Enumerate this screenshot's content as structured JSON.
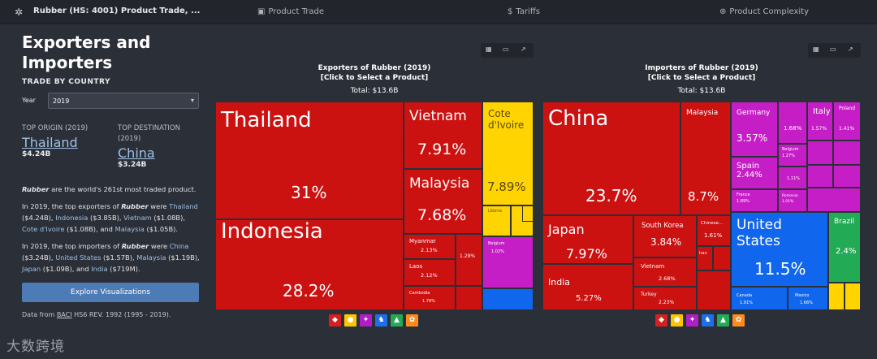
{
  "topbar": {
    "title": "Rubber (HS: 4001) Product Trade, ...",
    "nav": [
      {
        "label": "Product Trade",
        "icon": "trade-icon"
      },
      {
        "label": "Tariffs",
        "icon": "dollar-icon"
      },
      {
        "label": "Product Complexity",
        "icon": "globe-icon"
      }
    ]
  },
  "sidebar": {
    "heading_line1": "Exporters and",
    "heading_line2": "Importers",
    "subheading": "TRADE BY COUNTRY",
    "year_label": "Year",
    "year_value": "2019",
    "top_origin_label": "TOP ORIGIN (2019)",
    "top_origin_name": "Thailand",
    "top_origin_value": "$4.24B",
    "top_dest_label_line1": "TOP DESTINATION",
    "top_dest_label_line2": "(2019)",
    "top_dest_name": "China",
    "top_dest_value": "$3.24B",
    "p1_product": "Rubber",
    "p1_text": " are the world's 261st most traded product.",
    "p2_intro": "In 2019, the top exporters of ",
    "p2_product": "Rubber",
    "p2_were": " were ",
    "p2_items": [
      {
        "name": "Thailand",
        "value": " ($4.24B), "
      },
      {
        "name": "Indonesia",
        "value": " ($3.85B), "
      },
      {
        "name": "Vietnam",
        "value": " ($1.08B), "
      },
      {
        "name": "Cote d'Ivoire",
        "value": " ($1.08B), and "
      },
      {
        "name": "Malaysia",
        "value": " ($1.05B)."
      }
    ],
    "p3_intro": "In 2019, the top importers of ",
    "p3_product": "Rubber",
    "p3_were": " were ",
    "p3_items": [
      {
        "name": "China",
        "value": " ($3.24B), "
      },
      {
        "name": "United States",
        "value": " ($1.57B), "
      },
      {
        "name": "Malaysia",
        "value": " ($1.19B), "
      },
      {
        "name": "Japan",
        "value": " ($1.09B), and "
      },
      {
        "name": "India",
        "value": " ($719M)."
      }
    ],
    "explore_label": "Explore Visualizations",
    "data_from_prefix": "Data from ",
    "data_from_source": "BACI",
    "data_from_suffix": " HS6 REV. 1992 (1995 - 2019)."
  },
  "watermark": "大数跨境",
  "exporters": {
    "title_line1": "Exporters of Rubber (2019)",
    "title_line2": "[Click to Select a Product]",
    "total": "Total: $13.6B",
    "cells": [
      {
        "name": "Thailand",
        "pct": "31%",
        "color": "#cc1111"
      },
      {
        "name": "Indonesia",
        "pct": "28.2%",
        "color": "#cc1111"
      },
      {
        "name": "Vietnam",
        "pct": "7.91%",
        "color": "#cc1111"
      },
      {
        "name": "Malaysia",
        "pct": "7.68%",
        "color": "#cc1111"
      },
      {
        "name": "Myanmar",
        "pct": "2.13%",
        "color": "#cc1111"
      },
      {
        "name": "Laos",
        "pct": "2.12%",
        "color": "#cc1111"
      },
      {
        "name": "Cambodia",
        "pct": "1.78%",
        "color": "#cc1111"
      },
      {
        "name": "",
        "pct": "1.29%",
        "color": "#cc1111"
      },
      {
        "name": "Cote d'Ivoire",
        "pct": "7.89%",
        "color": "#ffd400"
      },
      {
        "name": "Liberia",
        "pct": "",
        "color": "#ffd400"
      },
      {
        "name": "Belgium",
        "pct": "1.02%",
        "color": "#c61ec6"
      }
    ]
  },
  "importers": {
    "title_line1": "Importers of Rubber (2019)",
    "title_line2": "[Click to Select a Product]",
    "total": "Total: $13.6B",
    "cells": [
      {
        "name": "China",
        "pct": "23.7%",
        "color": "#cc1111"
      },
      {
        "name": "Malaysia",
        "pct": "8.7%",
        "color": "#cc1111"
      },
      {
        "name": "Japan",
        "pct": "7.97%",
        "color": "#cc1111"
      },
      {
        "name": "India",
        "pct": "5.27%",
        "color": "#cc1111"
      },
      {
        "name": "South Korea",
        "pct": "3.84%",
        "color": "#cc1111"
      },
      {
        "name": "Vietnam",
        "pct": "2.68%",
        "color": "#cc1111"
      },
      {
        "name": "Turkey",
        "pct": "2.23%",
        "color": "#cc1111"
      },
      {
        "name": "Chinese...",
        "pct": "1.61%",
        "color": "#cc1111"
      },
      {
        "name": "Iran",
        "pct": "",
        "color": "#cc1111"
      },
      {
        "name": "Germany",
        "pct": "3.57%",
        "color": "#c61ec6"
      },
      {
        "name": "Spain",
        "pct": "2.44%",
        "color": "#c61ec6"
      },
      {
        "name": "France",
        "pct": "1.89%",
        "color": "#c61ec6"
      },
      {
        "name": "",
        "pct": "1.68%",
        "color": "#c61ec6"
      },
      {
        "name": "Belgium",
        "pct": "1.27%",
        "color": "#c61ec6"
      },
      {
        "name": "",
        "pct": "1.11%",
        "color": "#c61ec6"
      },
      {
        "name": "Romania",
        "pct": "1.01%",
        "color": "#c61ec6"
      },
      {
        "name": "Italy",
        "pct": "1.57%",
        "color": "#c61ec6"
      },
      {
        "name": "Poland",
        "pct": "1.41%",
        "color": "#c61ec6"
      },
      {
        "name": "United States",
        "pct": "11.5%",
        "color": "#1166ee"
      },
      {
        "name": "Canada",
        "pct": "1.91%",
        "color": "#1166ee"
      },
      {
        "name": "Mexico",
        "pct": "1.66%",
        "color": "#1166ee"
      },
      {
        "name": "Brazil",
        "pct": "2.4%",
        "color": "#22aa55"
      }
    ]
  },
  "continent_icons": [
    {
      "icon": "africa-icon",
      "color": "#d61f1f"
    },
    {
      "icon": "asia-icon",
      "color": "#ffc400"
    },
    {
      "icon": "europe-icon",
      "color": "#b21ec6"
    },
    {
      "icon": "north-america-icon",
      "color": "#1e6ee8"
    },
    {
      "icon": "south-america-icon",
      "color": "#22aa55"
    },
    {
      "icon": "oceania-icon",
      "color": "#ff8a1e"
    }
  ]
}
